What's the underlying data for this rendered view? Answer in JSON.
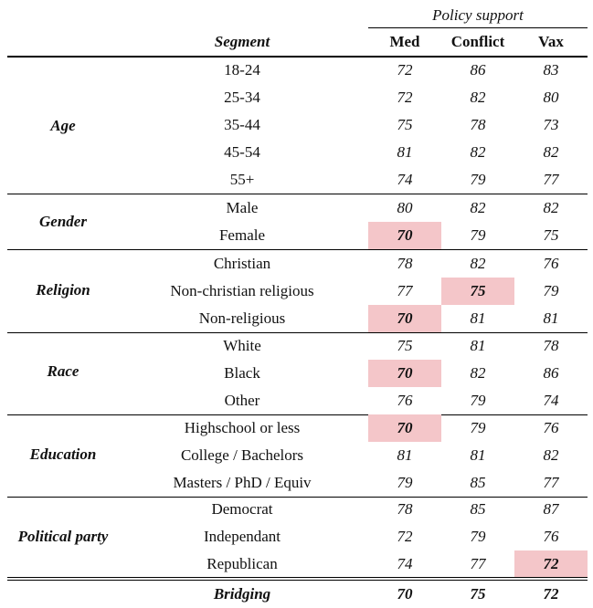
{
  "header": {
    "over": "Policy support",
    "segment": "Segment",
    "med": "Med",
    "conflict": "Conflict",
    "vax": "Vax"
  },
  "groups": [
    {
      "label": "Age",
      "rows": [
        {
          "sub": "18-24",
          "med": "72",
          "conflict": "86",
          "vax": "83"
        },
        {
          "sub": "25-34",
          "med": "72",
          "conflict": "82",
          "vax": "80"
        },
        {
          "sub": "35-44",
          "med": "75",
          "conflict": "78",
          "vax": "73"
        },
        {
          "sub": "45-54",
          "med": "81",
          "conflict": "82",
          "vax": "82"
        },
        {
          "sub": "55+",
          "med": "74",
          "conflict": "79",
          "vax": "77"
        }
      ]
    },
    {
      "label": "Gender",
      "rows": [
        {
          "sub": "Male",
          "med": "80",
          "conflict": "82",
          "vax": "82"
        },
        {
          "sub": "Female",
          "med": "70",
          "conflict": "79",
          "vax": "75"
        }
      ]
    },
    {
      "label": "Religion",
      "rows": [
        {
          "sub": "Christian",
          "med": "78",
          "conflict": "82",
          "vax": "76"
        },
        {
          "sub": "Non-christian religious",
          "med": "77",
          "conflict": "75",
          "vax": "79"
        },
        {
          "sub": "Non-religious",
          "med": "70",
          "conflict": "81",
          "vax": "81"
        }
      ]
    },
    {
      "label": "Race",
      "rows": [
        {
          "sub": "White",
          "med": "75",
          "conflict": "81",
          "vax": "78"
        },
        {
          "sub": "Black",
          "med": "70",
          "conflict": "82",
          "vax": "86"
        },
        {
          "sub": "Other",
          "med": "76",
          "conflict": "79",
          "vax": "74"
        }
      ]
    },
    {
      "label": "Education",
      "rows": [
        {
          "sub": "Highschool or less",
          "med": "70",
          "conflict": "79",
          "vax": "76"
        },
        {
          "sub": "College / Bachelors",
          "med": "81",
          "conflict": "81",
          "vax": "82"
        },
        {
          "sub": "Masters / PhD / Equiv",
          "med": "79",
          "conflict": "85",
          "vax": "77"
        }
      ]
    },
    {
      "label": "Political party",
      "rows": [
        {
          "sub": "Democrat",
          "med": "78",
          "conflict": "85",
          "vax": "87"
        },
        {
          "sub": "Independant",
          "med": "72",
          "conflict": "79",
          "vax": "76"
        },
        {
          "sub": "Republican",
          "med": "74",
          "conflict": "77",
          "vax": "72"
        }
      ]
    }
  ],
  "bridging": {
    "label": "Bridging",
    "med": "70",
    "conflict": "75",
    "vax": "72"
  },
  "highlight_color": "#f4c6c9"
}
